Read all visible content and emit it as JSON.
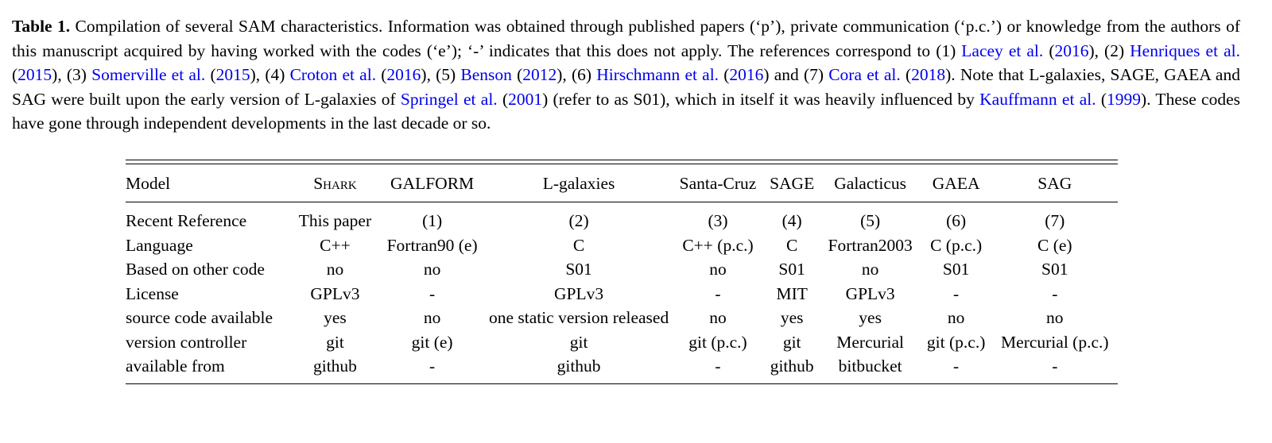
{
  "caption": {
    "label": "Table 1.",
    "seg1": " Compilation of several SAM characteristics. Information was obtained through published papers (‘p’), private communication (‘p.c.’) or knowledge from the authors of this manuscript acquired by having worked with the codes (‘e’); ‘-’ indicates that this does not apply. The references correspond to (1) ",
    "cite1a": "Lacey et al.",
    "p1": " (",
    "cite1b": "2016",
    "p2": "), (2) ",
    "cite2a": "Henriques et al.",
    "p3": " (",
    "cite2b": "2015",
    "p4": "), (3) ",
    "cite3a": "Somerville et al.",
    "p5": " (",
    "cite3b": "2015",
    "p6": "), (4) ",
    "cite4a": "Croton et al.",
    "p7": " (",
    "cite4b": "2016",
    "p8": "), (5) ",
    "cite5a": "Benson",
    "p9": " (",
    "cite5b": "2012",
    "p10": "), (6) ",
    "cite6a": "Hirschmann et al.",
    "p11": " (",
    "cite6b": "2016",
    "p12": ") and (7) ",
    "cite7a": "Cora et al.",
    "p13": " (",
    "cite7b": "2018",
    "p14": "). Note that L-galaxies, SAGE, GAEA and SAG were built upon the early version of L-galaxies of ",
    "cite8a": "Springel et al.",
    "p15": " (",
    "cite8b": "2001",
    "p16": ") (refer to as S01), which in itself it was heavily influenced by ",
    "cite9a": "Kauffmann et al.",
    "p17": " (",
    "cite9b": "1999",
    "p18": "). These codes have gone through independent developments in the last decade or so."
  },
  "table": {
    "headers": [
      "Model",
      "Shark",
      "GALFORM",
      "L-galaxies",
      "Santa-Cruz",
      "SAGE",
      "Galacticus",
      "GAEA",
      "SAG"
    ],
    "rows": [
      [
        "Recent Reference",
        "This paper",
        "(1)",
        "(2)",
        "(3)",
        "(4)",
        "(5)",
        "(6)",
        "(7)"
      ],
      [
        "Language",
        "C++",
        "Fortran90 (e)",
        "C",
        "C++ (p.c.)",
        "C",
        "Fortran2003",
        "C (p.c.)",
        "C (e)"
      ],
      [
        "Based on other code",
        "no",
        "no",
        "S01",
        "no",
        "S01",
        "no",
        "S01",
        "S01"
      ],
      [
        "License",
        "GPLv3",
        "-",
        "GPLv3",
        "-",
        "MIT",
        "GPLv3",
        "-",
        "-"
      ],
      [
        "source code available",
        "yes",
        "no",
        "one static version released",
        "no",
        "yes",
        "yes",
        "no",
        "no"
      ],
      [
        "version controller",
        "git",
        "git (e)",
        "git",
        "git (p.c.)",
        "git",
        "Mercurial",
        "git (p.c.)",
        "Mercurial (p.c.)"
      ],
      [
        "available from",
        "github",
        "-",
        "github",
        "-",
        "github",
        "bitbucket",
        "-",
        "-"
      ]
    ]
  }
}
